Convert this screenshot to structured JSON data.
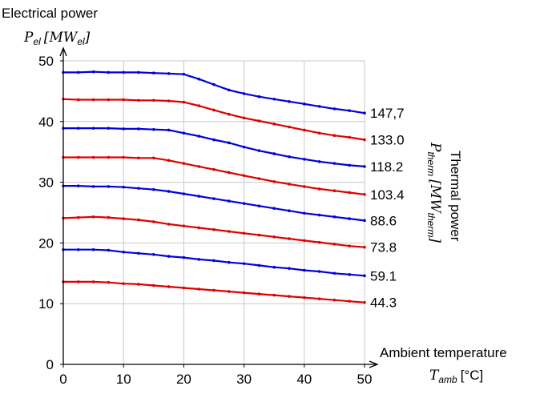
{
  "chart_data": {
    "type": "line",
    "x": [
      0,
      2.5,
      5,
      7.5,
      10,
      12.5,
      15,
      17.5,
      20,
      22.5,
      25,
      27.5,
      30,
      32.5,
      35,
      37.5,
      40,
      42.5,
      45,
      47.5,
      50
    ],
    "xlim": [
      0,
      50
    ],
    "ylim": [
      0,
      50
    ],
    "xticks": [
      0,
      10,
      20,
      30,
      40,
      50
    ],
    "yticks": [
      0,
      10,
      20,
      30,
      40,
      50
    ],
    "grid": true,
    "ylabel_title": "Electrical power",
    "ylabel_symbol": "P",
    "ylabel_symbol_sub": "el",
    "ylabel_unit_symbol": "MW",
    "ylabel_unit_sub": "el",
    "xlabel_title": "Ambient temperature",
    "xlabel_symbol": "T",
    "xlabel_symbol_sub": "amb",
    "xlabel_unit": "[°C]",
    "right_label_title": "Thermal power",
    "right_label_symbol": "P",
    "right_label_symbol_sub": "therm",
    "right_label_unit_symbol": "MW",
    "right_label_unit_sub": "therm",
    "series": [
      {
        "label": "147,7",
        "color": "#0000dd",
        "values": [
          48.1,
          48.1,
          48.2,
          48.1,
          48.1,
          48.1,
          48.0,
          47.9,
          47.8,
          47.0,
          46.1,
          45.2,
          44.6,
          44.1,
          43.7,
          43.3,
          42.9,
          42.5,
          42.1,
          41.8,
          41.4
        ]
      },
      {
        "label": "133.0",
        "color": "#dd0000",
        "values": [
          43.7,
          43.6,
          43.6,
          43.6,
          43.6,
          43.5,
          43.5,
          43.4,
          43.2,
          42.6,
          41.9,
          41.2,
          40.6,
          40.1,
          39.6,
          39.1,
          38.6,
          38.1,
          37.7,
          37.4,
          37.0
        ]
      },
      {
        "label": "118.2",
        "color": "#0000dd",
        "values": [
          38.9,
          38.9,
          38.9,
          38.9,
          38.8,
          38.8,
          38.7,
          38.6,
          38.1,
          37.6,
          37.0,
          36.5,
          35.8,
          35.2,
          34.7,
          34.2,
          33.8,
          33.4,
          33.1,
          32.8,
          32.6
        ]
      },
      {
        "label": "103.4",
        "color": "#dd0000",
        "values": [
          34.1,
          34.1,
          34.1,
          34.1,
          34.1,
          34.0,
          34.0,
          33.6,
          33.1,
          32.6,
          32.1,
          31.6,
          31.1,
          30.6,
          30.1,
          29.7,
          29.3,
          28.9,
          28.6,
          28.3,
          28.0
        ]
      },
      {
        "label": "88.6",
        "color": "#0000dd",
        "values": [
          29.4,
          29.4,
          29.3,
          29.3,
          29.2,
          29.0,
          28.8,
          28.5,
          28.1,
          27.7,
          27.3,
          26.9,
          26.5,
          26.1,
          25.7,
          25.3,
          24.9,
          24.6,
          24.3,
          24.0,
          23.7
        ]
      },
      {
        "label": "73.8",
        "color": "#dd0000",
        "values": [
          24.1,
          24.2,
          24.3,
          24.2,
          24.0,
          23.8,
          23.5,
          23.1,
          22.8,
          22.5,
          22.2,
          21.9,
          21.6,
          21.3,
          21.0,
          20.7,
          20.4,
          20.1,
          19.8,
          19.5,
          19.3
        ]
      },
      {
        "label": "59.1",
        "color": "#0000dd",
        "values": [
          18.9,
          18.9,
          18.9,
          18.8,
          18.5,
          18.3,
          18.1,
          17.8,
          17.6,
          17.3,
          17.1,
          16.8,
          16.6,
          16.3,
          16.0,
          15.8,
          15.5,
          15.3,
          15.0,
          14.8,
          14.6
        ]
      },
      {
        "label": "44.3",
        "color": "#dd0000",
        "values": [
          13.6,
          13.6,
          13.6,
          13.5,
          13.3,
          13.2,
          13.0,
          12.8,
          12.6,
          12.4,
          12.2,
          12.0,
          11.8,
          11.6,
          11.4,
          11.2,
          11.0,
          10.8,
          10.6,
          10.4,
          10.2
        ]
      }
    ]
  }
}
